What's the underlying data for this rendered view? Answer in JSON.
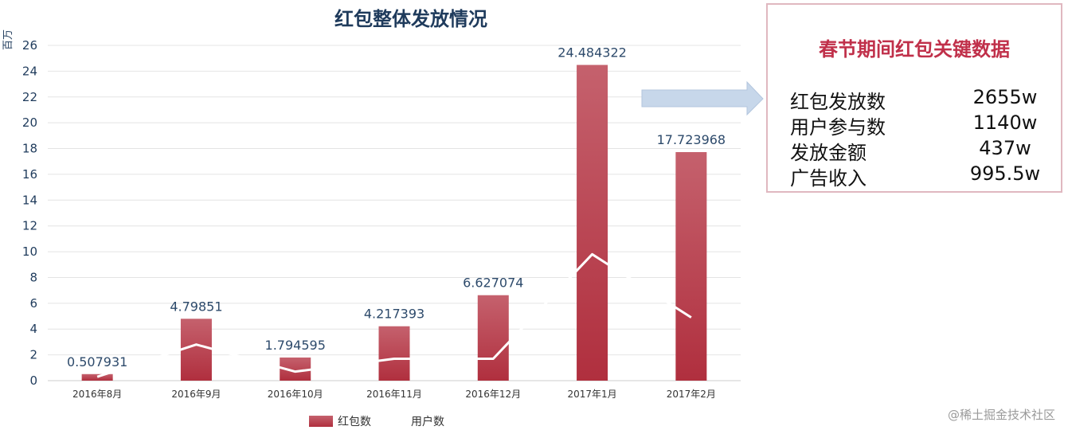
{
  "chart_data": {
    "type": "bar",
    "title": "红包整体发放情况",
    "ylabel": "百万",
    "xlabel": "",
    "ylim": [
      0,
      26
    ],
    "yticks": [
      0,
      2,
      4,
      6,
      8,
      10,
      12,
      14,
      16,
      18,
      20,
      22,
      24,
      26
    ],
    "categories": [
      "2016年8月",
      "2016年9月",
      "2016年10月",
      "2016年11月",
      "2016年12月",
      "2017年1月",
      "2017年2月"
    ],
    "series": [
      {
        "name": "红包数",
        "type": "bar",
        "color": "#b83a48",
        "values": [
          0.507931,
          4.79851,
          1.794595,
          4.217393,
          6.627074,
          24.484322,
          17.723968
        ],
        "labels": [
          "0.507931",
          "4.79851",
          "1.794595",
          "4.217393",
          "6.627074",
          "24.484322",
          "17.723968"
        ]
      },
      {
        "name": "用户数",
        "type": "line",
        "color": "#ffffff",
        "values": [
          0.3,
          2.8,
          0.7,
          1.7,
          1.7,
          9.8,
          4.9
        ]
      }
    ],
    "legend_position": "bottom",
    "grid": true
  },
  "info_box": {
    "title": "春节期间红包关键数据",
    "rows": [
      {
        "label": "红包发放数",
        "value": "2655w"
      },
      {
        "label": "用户参与数",
        "value": "1140w"
      },
      {
        "label": "发放金额",
        "value": "437w"
      },
      {
        "label": "广告收入",
        "value": "995.5w"
      }
    ]
  },
  "watermark": "@稀土掘金技术社区",
  "colors": {
    "bar": "#b83a48",
    "arrow": "#c7d7ea",
    "info_title": "#c0304a",
    "info_border": "#e0b8c0"
  }
}
